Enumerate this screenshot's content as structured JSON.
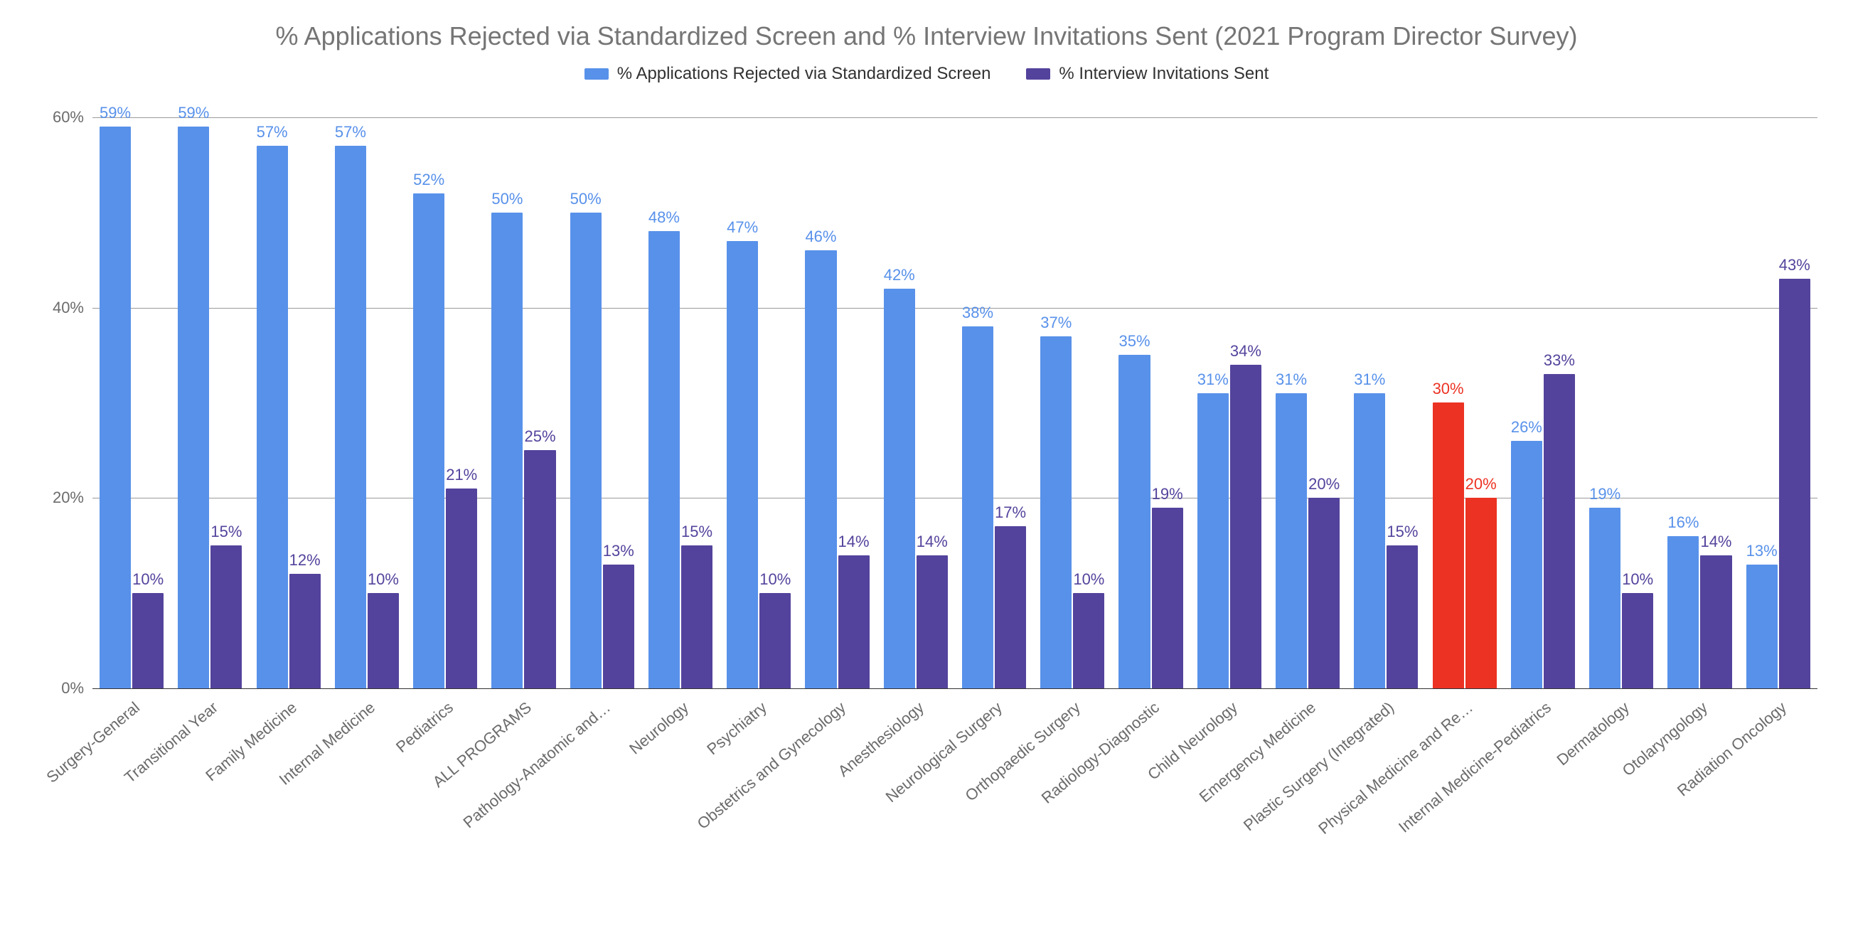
{
  "chart": {
    "type": "bar",
    "title": "% Applications Rejected via Standardized Screen and % Interview Invitations Sent (2021 Program Director Survey)",
    "title_color": "#757575",
    "title_fontsize": 36,
    "background_color": "#ffffff",
    "y_axis": {
      "min": 0,
      "max": 62,
      "ticks": [
        0,
        20,
        40,
        60
      ],
      "tick_labels": [
        "0%",
        "20%",
        "40%",
        "60%"
      ],
      "label_color": "#6b6b6b",
      "label_fontsize": 22,
      "gridline_color_major": "#9a9a9a",
      "gridline_color_baseline": "#333333"
    },
    "legend": {
      "items": [
        {
          "label": "% Applications Rejected via Standardized Screen",
          "color": "#5891ea"
        },
        {
          "label": "% Interview Invitations Sent",
          "color": "#54439c"
        }
      ],
      "label_fontsize": 24,
      "label_color": "#323232"
    },
    "series_colors": {
      "rejected_default": "#5891ea",
      "invited_default": "#54439c",
      "highlight": "#ec3323"
    },
    "data_label_fontsize": 22,
    "categories": [
      {
        "label": "Surgery-General",
        "rejected": 59,
        "invited": 10,
        "highlight": false
      },
      {
        "label": "Transitional Year",
        "rejected": 59,
        "invited": 15,
        "highlight": false
      },
      {
        "label": "Family Medicine",
        "rejected": 57,
        "invited": 12,
        "highlight": false
      },
      {
        "label": "Internal Medicine",
        "rejected": 57,
        "invited": 10,
        "highlight": false
      },
      {
        "label": "Pediatrics",
        "rejected": 52,
        "invited": 21,
        "highlight": false
      },
      {
        "label": "ALL PROGRAMS",
        "rejected": 50,
        "invited": 25,
        "highlight": false
      },
      {
        "label": "Pathology-Anatomic and…",
        "rejected": 50,
        "invited": 13,
        "highlight": false
      },
      {
        "label": "Neurology",
        "rejected": 48,
        "invited": 15,
        "highlight": false
      },
      {
        "label": "Psychiatry",
        "rejected": 47,
        "invited": 10,
        "highlight": false
      },
      {
        "label": "Obstetrics and Gynecology",
        "rejected": 46,
        "invited": 14,
        "highlight": false
      },
      {
        "label": "Anesthesiology",
        "rejected": 42,
        "invited": 14,
        "highlight": false
      },
      {
        "label": "Neurological Surgery",
        "rejected": 38,
        "invited": 17,
        "highlight": false
      },
      {
        "label": "Orthopaedic Surgery",
        "rejected": 37,
        "invited": 10,
        "highlight": false
      },
      {
        "label": "Radiology-Diagnostic",
        "rejected": 35,
        "invited": 19,
        "highlight": false
      },
      {
        "label": "Child Neurology",
        "rejected": 31,
        "invited": 34,
        "highlight": false
      },
      {
        "label": "Emergency Medicine",
        "rejected": 31,
        "invited": 20,
        "highlight": false
      },
      {
        "label": "Plastic Surgery (Integrated)",
        "rejected": 31,
        "invited": 15,
        "highlight": false
      },
      {
        "label": "Physical Medicine and Re…",
        "rejected": 30,
        "invited": 20,
        "highlight": true
      },
      {
        "label": "Internal Medicine-Pediatrics",
        "rejected": 26,
        "invited": 33,
        "highlight": false
      },
      {
        "label": "Dermatology",
        "rejected": 19,
        "invited": 10,
        "highlight": false
      },
      {
        "label": "Otolaryngology",
        "rejected": 16,
        "invited": 14,
        "highlight": false
      },
      {
        "label": "Radiation Oncology",
        "rejected": 13,
        "invited": 43,
        "highlight": false
      }
    ]
  }
}
